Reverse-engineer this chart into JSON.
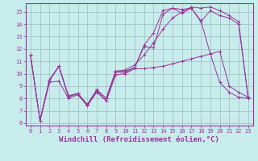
{
  "xlabel": "Windchill (Refroidissement éolien,°C)",
  "bg_color": "#c8ecec",
  "grid_color": "#9bbfbf",
  "line_color": "#993399",
  "xlim": [
    -0.5,
    23.5
  ],
  "ylim": [
    5.8,
    15.7
  ],
  "yticks": [
    6,
    7,
    8,
    9,
    10,
    11,
    12,
    13,
    14,
    15
  ],
  "xticks": [
    0,
    1,
    2,
    3,
    4,
    5,
    6,
    7,
    8,
    9,
    10,
    11,
    12,
    13,
    14,
    15,
    16,
    17,
    18,
    19,
    20,
    21,
    22,
    23
  ],
  "lines": [
    {
      "x": [
        0,
        1,
        2,
        3,
        4,
        5,
        6,
        7,
        8,
        9,
        10,
        11,
        12,
        13,
        14,
        15,
        16,
        17,
        18,
        19,
        20,
        21,
        22,
        23
      ],
      "y": [
        11.5,
        6.2,
        9.4,
        10.6,
        8.1,
        8.4,
        7.4,
        8.6,
        7.8,
        10.1,
        10.1,
        10.5,
        12.2,
        12.1,
        14.8,
        15.3,
        14.9,
        15.3,
        14.3,
        11.6,
        9.3,
        8.5,
        8.1,
        8.0
      ]
    },
    {
      "x": [
        0,
        1,
        2,
        3,
        4,
        5,
        6,
        7,
        8,
        9,
        10,
        11,
        12,
        13,
        14,
        15,
        16,
        17,
        18,
        19,
        20,
        21,
        22,
        23
      ],
      "y": [
        11.5,
        6.2,
        9.5,
        10.6,
        8.2,
        8.4,
        7.5,
        8.7,
        8.0,
        10.2,
        10.2,
        10.5,
        12.3,
        13.3,
        15.1,
        15.3,
        15.2,
        15.3,
        14.2,
        15.1,
        14.7,
        14.5,
        14.0,
        8.1
      ]
    },
    {
      "x": [
        1,
        2,
        3,
        4,
        5,
        6,
        7,
        8,
        9,
        10,
        11,
        12,
        13,
        14,
        15,
        16,
        17,
        18,
        19,
        20,
        21,
        22,
        23
      ],
      "y": [
        6.2,
        9.5,
        10.6,
        8.2,
        8.4,
        7.5,
        8.7,
        8.0,
        10.2,
        10.3,
        10.7,
        11.5,
        12.5,
        13.6,
        14.5,
        15.0,
        15.4,
        15.3,
        15.4,
        15.1,
        14.7,
        14.2,
        8.0
      ]
    },
    {
      "x": [
        0,
        1,
        2,
        3,
        4,
        5,
        6,
        7,
        8,
        9,
        10,
        11,
        12,
        13,
        14,
        15,
        16,
        17,
        18,
        19,
        20,
        21,
        22,
        23
      ],
      "y": [
        11.5,
        6.2,
        9.3,
        9.4,
        8.0,
        8.3,
        7.4,
        8.5,
        7.8,
        9.9,
        10.0,
        10.4,
        10.4,
        10.5,
        10.6,
        10.8,
        11.0,
        11.2,
        11.4,
        11.6,
        11.8,
        9.0,
        8.5,
        8.1
      ]
    }
  ],
  "tick_fontsize": 5,
  "xlabel_fontsize": 6.5,
  "linewidth": 0.7,
  "markersize": 2.5
}
